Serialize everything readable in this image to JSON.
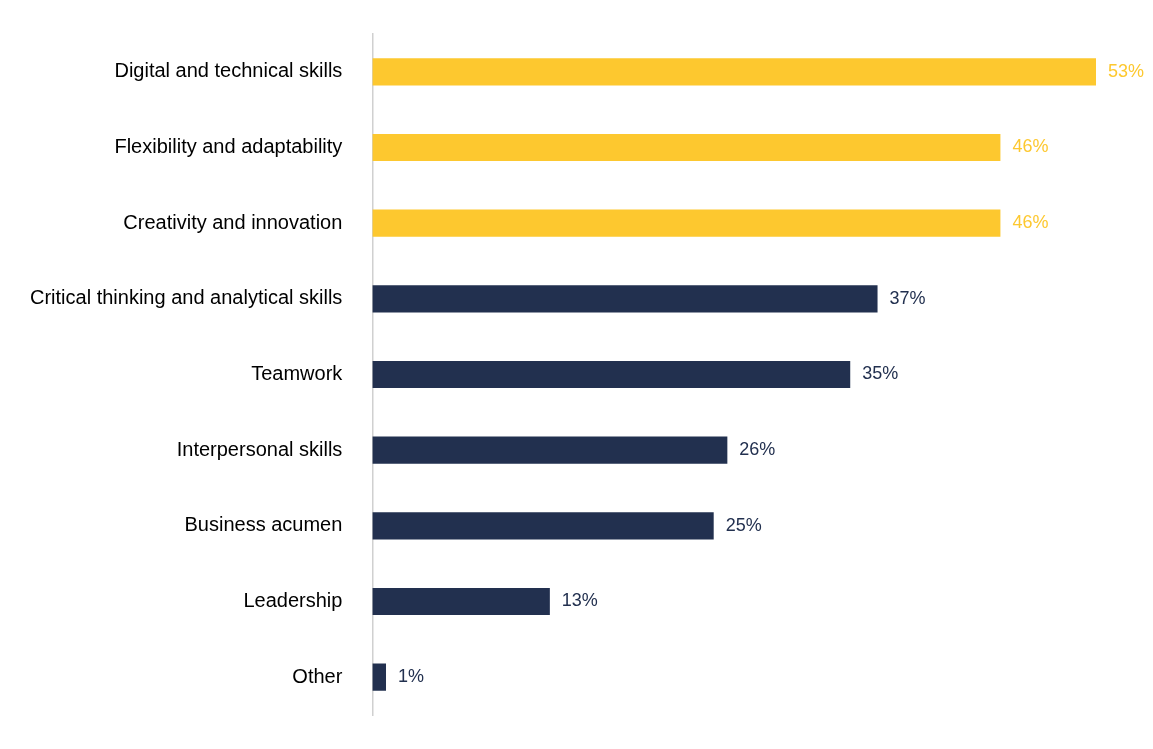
{
  "chart_data": {
    "type": "bar",
    "orientation": "horizontal",
    "categories": [
      "Digital and technical skills",
      "Flexibility and adaptability",
      "Creativity and innovation",
      "Critical thinking and analytical skills",
      "Teamwork",
      "Interpersonal skills",
      "Business acumen",
      "Leadership",
      "Other"
    ],
    "values": [
      53,
      46,
      46,
      37,
      35,
      26,
      25,
      13,
      1
    ],
    "colors": [
      "#fdc82f",
      "#fdc82f",
      "#fdc82f",
      "#22304f",
      "#22304f",
      "#22304f",
      "#22304f",
      "#22304f",
      "#22304f"
    ],
    "value_labels": [
      "53%",
      "46%",
      "46%",
      "37%",
      "35%",
      "26%",
      "25%",
      "13%",
      "1%"
    ],
    "grid": false,
    "legend": false,
    "tick_labels": "y"
  }
}
